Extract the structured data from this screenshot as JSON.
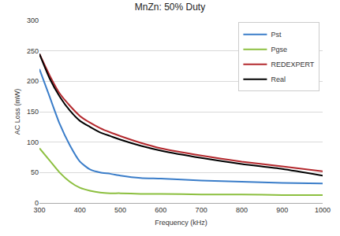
{
  "chart_data": {
    "type": "line",
    "title": "MnZn: 50% Duty",
    "x_label": "Frequency (kHz)",
    "y_label": "AC Loss (mW)",
    "x": [
      300,
      325,
      350,
      375,
      400,
      425,
      450,
      475,
      500,
      550,
      600,
      700,
      800,
      900,
      1000
    ],
    "series": [
      {
        "name": "Pst",
        "color": "#3a7dc9",
        "values": [
          220,
          175,
          130,
          95,
          68,
          55,
          50,
          48,
          45,
          41,
          40,
          37,
          35,
          33,
          32
        ]
      },
      {
        "name": "Pgse",
        "color": "#8cbf3f",
        "values": [
          90,
          70,
          50,
          35,
          25,
          20,
          17,
          16,
          16,
          15,
          15,
          14,
          14,
          13,
          13
        ]
      },
      {
        "name": "REDEXPERT",
        "color": "#b3282d",
        "values": [
          245,
          210,
          180,
          160,
          143,
          132,
          123,
          116,
          110,
          99,
          90,
          78,
          68,
          60,
          52
        ]
      },
      {
        "name": "Real",
        "color": "#000000",
        "values": [
          245,
          205,
          175,
          152,
          135,
          125,
          116,
          110,
          104,
          94,
          86,
          74,
          64,
          56,
          45
        ]
      }
    ],
    "xlim": [
      300,
      1000
    ],
    "xticks": [
      300,
      400,
      500,
      600,
      700,
      800,
      900,
      1000
    ],
    "ylim": [
      0,
      300
    ],
    "yticks": [
      0,
      50,
      100,
      150,
      200,
      250,
      300
    ],
    "grid": true,
    "legend": "top-right"
  }
}
